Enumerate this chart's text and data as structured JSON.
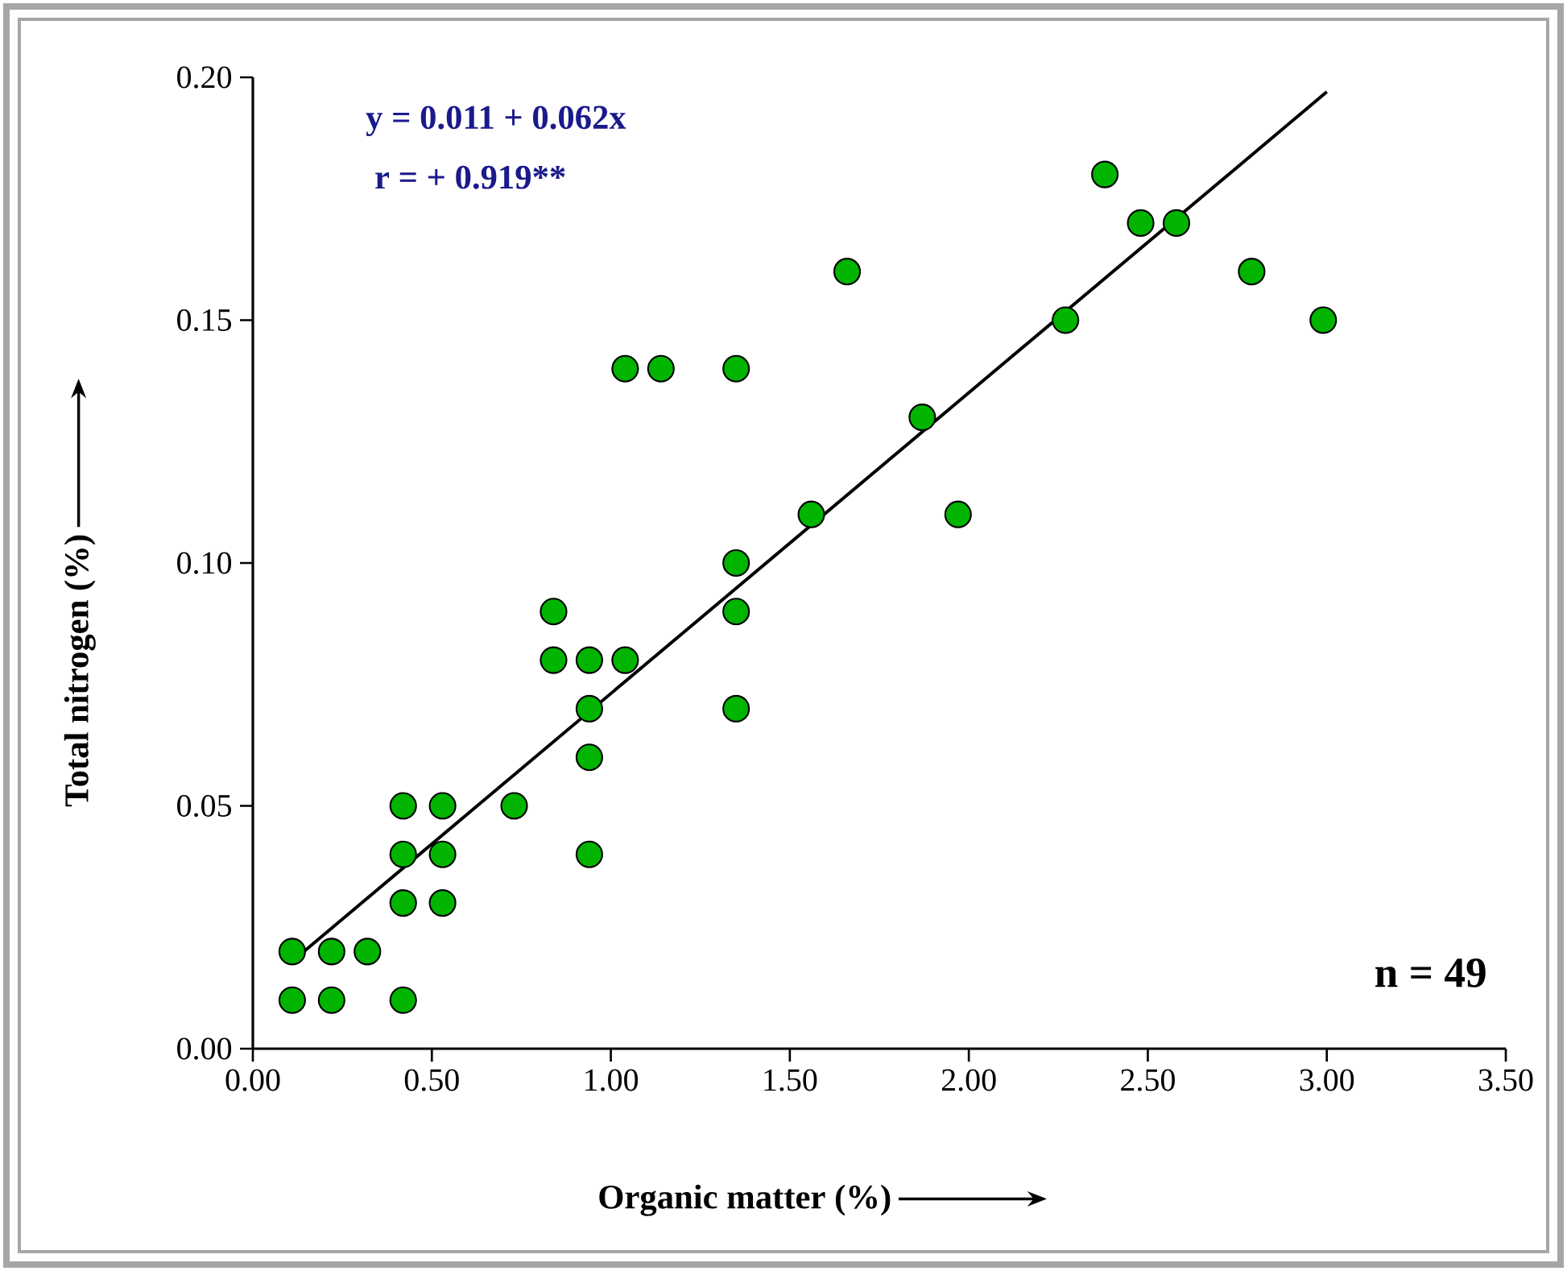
{
  "chart_data": {
    "type": "scatter",
    "xlabel": "Organic matter (%)",
    "ylabel": "Total nitrogen (%)",
    "xlim": [
      0,
      3.5
    ],
    "ylim": [
      0,
      0.2
    ],
    "xticks": [
      {
        "value": 0,
        "label": "0.00"
      },
      {
        "value": 0.5,
        "label": "0.50"
      },
      {
        "value": 1,
        "label": "1.00"
      },
      {
        "value": 1.5,
        "label": "1.50"
      },
      {
        "value": 2,
        "label": "2.00"
      },
      {
        "value": 2.5,
        "label": "2.50"
      },
      {
        "value": 3,
        "label": "3.00"
      },
      {
        "value": 3.5,
        "label": "3.50"
      }
    ],
    "yticks": [
      {
        "value": 0,
        "label": "0.00"
      },
      {
        "value": 0.05,
        "label": "0.05"
      },
      {
        "value": 0.1,
        "label": "0.10"
      },
      {
        "value": 0.15,
        "label": "0.15"
      },
      {
        "value": 0.2,
        "label": "0.20"
      }
    ],
    "grid": false,
    "series": [
      {
        "marker": "circle",
        "color": "#00b400",
        "x": [
          0.11,
          0.11,
          0.22,
          0.22,
          0.32,
          0.42,
          0.42,
          0.42,
          0.42,
          0.53,
          0.53,
          0.53,
          0.73,
          0.84,
          0.84,
          0.94,
          0.94,
          0.94,
          0.94,
          1.04,
          1.04,
          1.14,
          1.35,
          1.35,
          1.35,
          1.35,
          1.56,
          1.66,
          1.87,
          1.97,
          2.27,
          2.38,
          2.48,
          2.58,
          2.79,
          2.99
        ],
        "values": [
          0.02,
          0.01,
          0.02,
          0.01,
          0.02,
          0.05,
          0.04,
          0.03,
          0.01,
          0.05,
          0.04,
          0.03,
          0.05,
          0.09,
          0.08,
          0.08,
          0.07,
          0.06,
          0.04,
          0.08,
          0.14,
          0.14,
          0.14,
          0.1,
          0.09,
          0.07,
          0.11,
          0.16,
          0.13,
          0.11,
          0.15,
          0.18,
          0.17,
          0.17,
          0.16,
          0.15
        ]
      },
      {
        "type": "line",
        "marker": "none",
        "color": "#000000",
        "x": [
          0.11,
          3.0
        ],
        "values": [
          0.018,
          0.197
        ]
      }
    ],
    "annotations": [
      "y = 0.011 + 0.062x",
      "r = + 0.919**",
      "n = 49"
    ]
  }
}
